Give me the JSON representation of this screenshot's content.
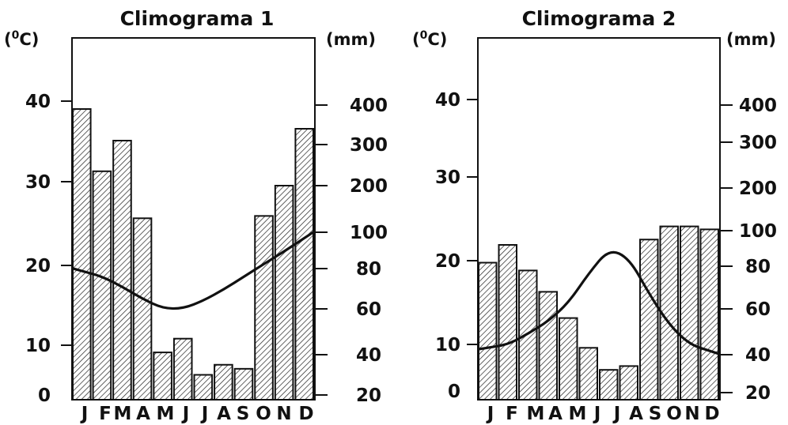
{
  "chart_data": [
    {
      "type": "bar",
      "title": "Climograma 1",
      "left_unit": "(0C)",
      "right_unit": "(mm)",
      "categories": [
        "J",
        "F",
        "M",
        "A",
        "M",
        "J",
        "J",
        "A",
        "S",
        "O",
        "N",
        "D"
      ],
      "left_ticks": [
        "0",
        "10",
        "20",
        "30",
        "40"
      ],
      "right_ticks": [
        "20",
        "40",
        "60",
        "80",
        "100",
        "200",
        "300",
        "400"
      ],
      "series": [
        {
          "kind": "bars",
          "values": [
            390,
            235,
            310,
            130,
            41,
            47,
            30,
            35,
            33,
            135,
            200,
            340
          ]
        },
        {
          "kind": "line",
          "values": [
            19.3,
            18.6,
            17.3,
            15.8,
            14.6,
            14.6,
            15.6,
            17.0,
            18.6,
            20.2,
            21.7,
            23.3
          ]
        }
      ]
    },
    {
      "type": "bar",
      "title": "Climograma 2",
      "left_unit": "(0C)",
      "right_unit": "(mm)",
      "categories": [
        "J",
        "F",
        "M",
        "A",
        "M",
        "J",
        "J",
        "A",
        "S",
        "O",
        "N",
        "D"
      ],
      "left_ticks": [
        "0",
        "10",
        "20",
        "30",
        "40"
      ],
      "right_ticks": [
        "20",
        "40",
        "60",
        "80",
        "100",
        "200",
        "300",
        "400"
      ],
      "series": [
        {
          "kind": "bars",
          "values": [
            82,
            92,
            78,
            68,
            56,
            43,
            32,
            34,
            95,
            110,
            110,
            103
          ]
        },
        {
          "kind": "line",
          "values": [
            9.3,
            10.0,
            11.3,
            12.8,
            15.0,
            18.5,
            21.4,
            20.3,
            16.0,
            12.3,
            10.0,
            8.6
          ]
        }
      ]
    }
  ]
}
